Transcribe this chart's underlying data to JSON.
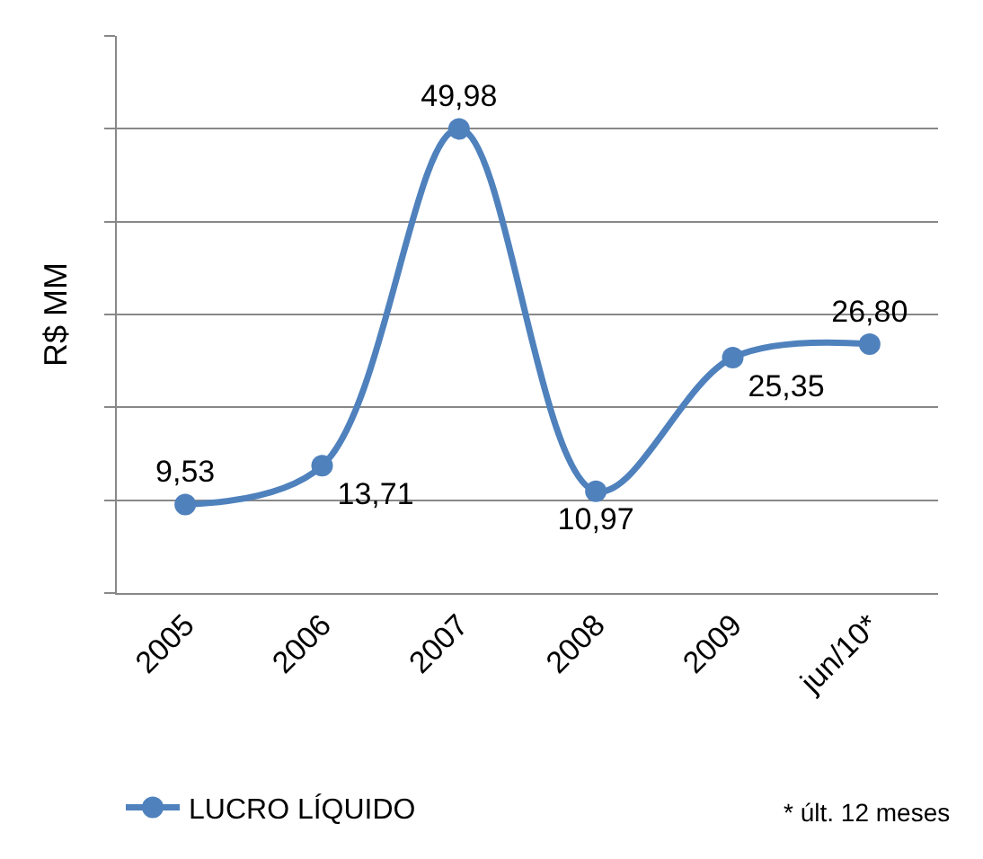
{
  "chart_data": {
    "type": "line",
    "ylabel": "R$ MM",
    "categories": [
      "2005",
      "2006",
      "2007",
      "2008",
      "2009",
      "jun/10*"
    ],
    "series": [
      {
        "name": "LUCRO LÍQUIDO",
        "color": "#4f81bd",
        "values": [
          9.53,
          13.71,
          49.98,
          10.97,
          25.35,
          26.8
        ],
        "value_labels": [
          "9,53",
          "13,71",
          "49,98",
          "10,97",
          "25,35",
          "26,80"
        ]
      }
    ],
    "ylim": [
      0,
      60
    ],
    "yticks": [
      {
        "value": 0,
        "label": null
      },
      {
        "value": 10,
        "label": null
      },
      {
        "value": 20,
        "label": null
      },
      {
        "value": 30,
        "label": null
      },
      {
        "value": 40,
        "label": null
      },
      {
        "value": 50,
        "label": null
      },
      {
        "value": 60,
        "label": null
      }
    ],
    "grid": "y",
    "legend": "bottom left",
    "marker": "circle",
    "line_style": "solid",
    "tick_labels": "x",
    "annotations": [
      "* últ. 12 meses"
    ]
  }
}
